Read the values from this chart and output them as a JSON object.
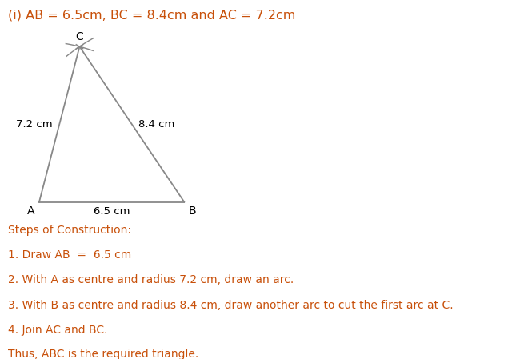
{
  "title": "(i) AB = 6.5cm, BC = 8.4cm and AC = 7.2cm",
  "title_color": "#c8500a",
  "title_fontsize": 11.5,
  "AB": 6.5,
  "BC": 8.4,
  "AC": 7.2,
  "triangle_color": "#888888",
  "triangle_linewidth": 1.3,
  "label_A": "A",
  "label_B": "B",
  "label_C": "C",
  "label_AB": "6.5 cm",
  "label_AC": "7.2 cm",
  "label_BC": "8.4 cm",
  "vertex_fontsize": 10,
  "side_label_fontsize": 9.5,
  "text_color": "#c8500a",
  "steps_fontsize": 10,
  "background_color": "#ffffff",
  "arc_color": "#888888",
  "arc_linewidth": 1.0,
  "cross_size": 0.15,
  "steps_lines": [
    "Steps of Construction:",
    "1. Draw AB  =  6.5 cm",
    "2. With A as centre and radius 7.2 cm, draw an arc.",
    "3. With B as centre and radius 8.4 cm, draw another arc to cut the first arc at C.",
    "4. Join AC and BC.",
    "Thus, ABC is the required triangle."
  ]
}
